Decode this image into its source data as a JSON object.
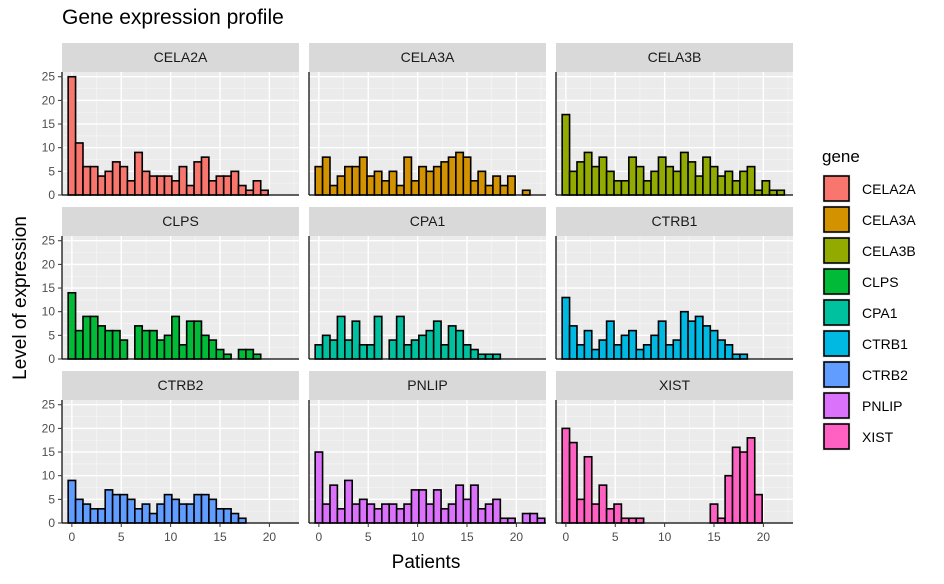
{
  "chart_data": {
    "type": "bar",
    "title": "Gene expression profile",
    "xlabel": "Patients",
    "ylabel": "Level of expression",
    "xlim": [
      -1,
      23
    ],
    "ylim": [
      0,
      26
    ],
    "x_ticks": [
      0,
      5,
      10,
      15,
      20
    ],
    "y_ticks": [
      0,
      5,
      10,
      15,
      20,
      25
    ],
    "grid": true,
    "facet_layout": "3x3",
    "legend": {
      "title": "gene",
      "placement": "right"
    },
    "series": [
      {
        "name": "CELA2A",
        "color": "#F8766D",
        "values": [
          25,
          11,
          6,
          6,
          4,
          5,
          7,
          6,
          3,
          9,
          5,
          4,
          4,
          4,
          3,
          6,
          2,
          7,
          8,
          3,
          4,
          4,
          5,
          2,
          1,
          3,
          1,
          0,
          0,
          0
        ]
      },
      {
        "name": "CELA3A",
        "color": "#D39200",
        "values": [
          6,
          8,
          2,
          4,
          6,
          6,
          8,
          4,
          5,
          3,
          5,
          2,
          8,
          3,
          6,
          5,
          6,
          7,
          8,
          9,
          8,
          3,
          5,
          2,
          4,
          2,
          4,
          0,
          1,
          0
        ]
      },
      {
        "name": "CELA3B",
        "color": "#93AA00",
        "values": [
          17,
          5,
          7,
          9,
          6,
          8,
          5,
          3,
          3,
          8,
          6,
          3,
          5,
          8,
          6,
          5,
          9,
          7,
          4,
          8,
          6,
          4,
          5,
          3,
          5,
          6,
          1,
          3,
          1,
          1
        ]
      },
      {
        "name": "CLPS",
        "color": "#00BA38",
        "values": [
          14,
          6,
          9,
          9,
          7,
          6,
          6,
          4,
          0,
          7,
          6,
          6,
          4,
          5,
          9,
          3,
          8,
          8,
          5,
          4,
          2,
          1,
          0,
          2,
          2,
          1,
          0,
          0,
          0,
          0
        ]
      },
      {
        "name": "CPA1",
        "color": "#00C19F",
        "values": [
          3,
          5,
          4,
          9,
          4,
          8,
          3,
          3,
          9,
          0,
          4,
          9,
          3,
          4,
          5,
          6,
          8,
          3,
          7,
          6,
          3,
          2,
          1,
          1,
          1,
          0,
          0,
          0,
          0,
          0
        ]
      },
      {
        "name": "CTRB1",
        "color": "#00B9E3",
        "values": [
          13,
          7,
          3,
          6,
          2,
          4,
          8,
          3,
          5,
          6,
          2,
          3,
          5,
          8,
          3,
          4,
          10,
          8,
          9,
          7,
          6,
          4,
          3,
          1,
          1,
          0,
          0,
          0,
          0,
          0
        ]
      },
      {
        "name": "CTRB2",
        "color": "#619CFF",
        "values": [
          9,
          5,
          4,
          3,
          3,
          7,
          6,
          6,
          5,
          3,
          4,
          2,
          4,
          6,
          5,
          4,
          4,
          6,
          6,
          5,
          3,
          3,
          2,
          1,
          0,
          0,
          0,
          0,
          0,
          0
        ]
      },
      {
        "name": "PNLIP",
        "color": "#DB72FB",
        "values": [
          15,
          4,
          8,
          3,
          9,
          4,
          5,
          4,
          3,
          4,
          4,
          3,
          4,
          7,
          7,
          4,
          7,
          3,
          4,
          8,
          5,
          8,
          3,
          4,
          5,
          1,
          1,
          0,
          2,
          2,
          1
        ]
      },
      {
        "name": "XIST",
        "color": "#FF61C3",
        "values": [
          20,
          17,
          5,
          14,
          4,
          8,
          3,
          4,
          1,
          1,
          1,
          0,
          0,
          0,
          0,
          0,
          0,
          0,
          0,
          0,
          4,
          1,
          10,
          16,
          15,
          18,
          6,
          0,
          0,
          0,
          0,
          0,
          0,
          0,
          0,
          0,
          0,
          0,
          0,
          0,
          0,
          0,
          0,
          0,
          0
        ]
      }
    ]
  }
}
